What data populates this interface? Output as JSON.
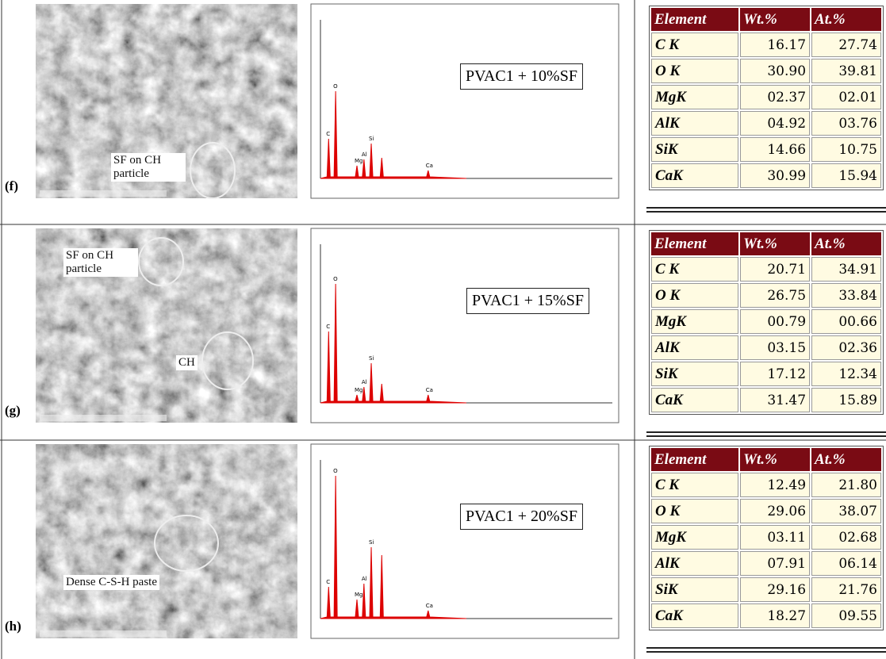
{
  "panels": [
    {
      "label": "(f)",
      "annotations": [
        "SF on CH particle"
      ],
      "spectrum_label": "PVAC1 + 10%SF",
      "peaks": [
        "C",
        "O",
        "Mg",
        "Al",
        "Si",
        "Ca"
      ],
      "table": {
        "header": [
          "Element",
          "Wt.%",
          "At.%"
        ],
        "rows": [
          [
            "C K",
            "16.17",
            "27.74"
          ],
          [
            "O K",
            "30.90",
            "39.81"
          ],
          [
            "MgK",
            "02.37",
            "02.01"
          ],
          [
            "AlK",
            "04.92",
            "03.76"
          ],
          [
            "SiK",
            "14.66",
            "10.75"
          ],
          [
            "CaK",
            "30.99",
            "15.94"
          ]
        ]
      }
    },
    {
      "label": "(g)",
      "annotations": [
        "SF on CH particle",
        "CH"
      ],
      "spectrum_label": "PVAC1 + 15%SF",
      "peaks": [
        "C",
        "O",
        "Mg",
        "Al",
        "Si",
        "Ca"
      ],
      "table": {
        "header": [
          "Element",
          "Wt.%",
          "At.%"
        ],
        "rows": [
          [
            "C K",
            "20.71",
            "34.91"
          ],
          [
            "O K",
            "26.75",
            "33.84"
          ],
          [
            "MgK",
            "00.79",
            "00.66"
          ],
          [
            "AlK",
            "03.15",
            "02.36"
          ],
          [
            "SiK",
            "17.12",
            "12.34"
          ],
          [
            "CaK",
            "31.47",
            "15.89"
          ]
        ]
      }
    },
    {
      "label": "(h)",
      "annotations": [
        "Dense C-S-H paste"
      ],
      "spectrum_label": "PVAC1 + 20%SF",
      "peaks": [
        "C",
        "O",
        "Mg",
        "Al",
        "Si",
        "Ca"
      ],
      "table": {
        "header": [
          "Element",
          "Wt.%",
          "At.%"
        ],
        "rows": [
          [
            "C K",
            "12.49",
            "21.80"
          ],
          [
            "O K",
            "29.06",
            "38.07"
          ],
          [
            "MgK",
            "03.11",
            "02.68"
          ],
          [
            "AlK",
            "07.91",
            "06.14"
          ],
          [
            "SiK",
            "29.16",
            "21.76"
          ],
          [
            "CaK",
            "18.27",
            "09.55"
          ]
        ]
      }
    }
  ]
}
